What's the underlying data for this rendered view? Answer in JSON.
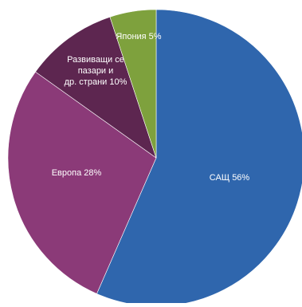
{
  "chart_data": {
    "type": "pie",
    "title": "",
    "slices": [
      {
        "label": "САЩ",
        "value": 56,
        "value_text": "56%",
        "color": "#2f66ad"
      },
      {
        "label": "Европа",
        "value": 28,
        "value_text": "28%",
        "color": "#8b3a78"
      },
      {
        "label": "Развиващи се пазари и др. страни",
        "value": 10,
        "value_text": "10%",
        "color": "#5d2650"
      },
      {
        "label": "Япония",
        "value": 5,
        "value_text": "5%",
        "color": "#7ea13d"
      }
    ],
    "legend": "none",
    "label_position": "inside",
    "start_angle": "12 o'clock",
    "direction": "clockwise"
  }
}
